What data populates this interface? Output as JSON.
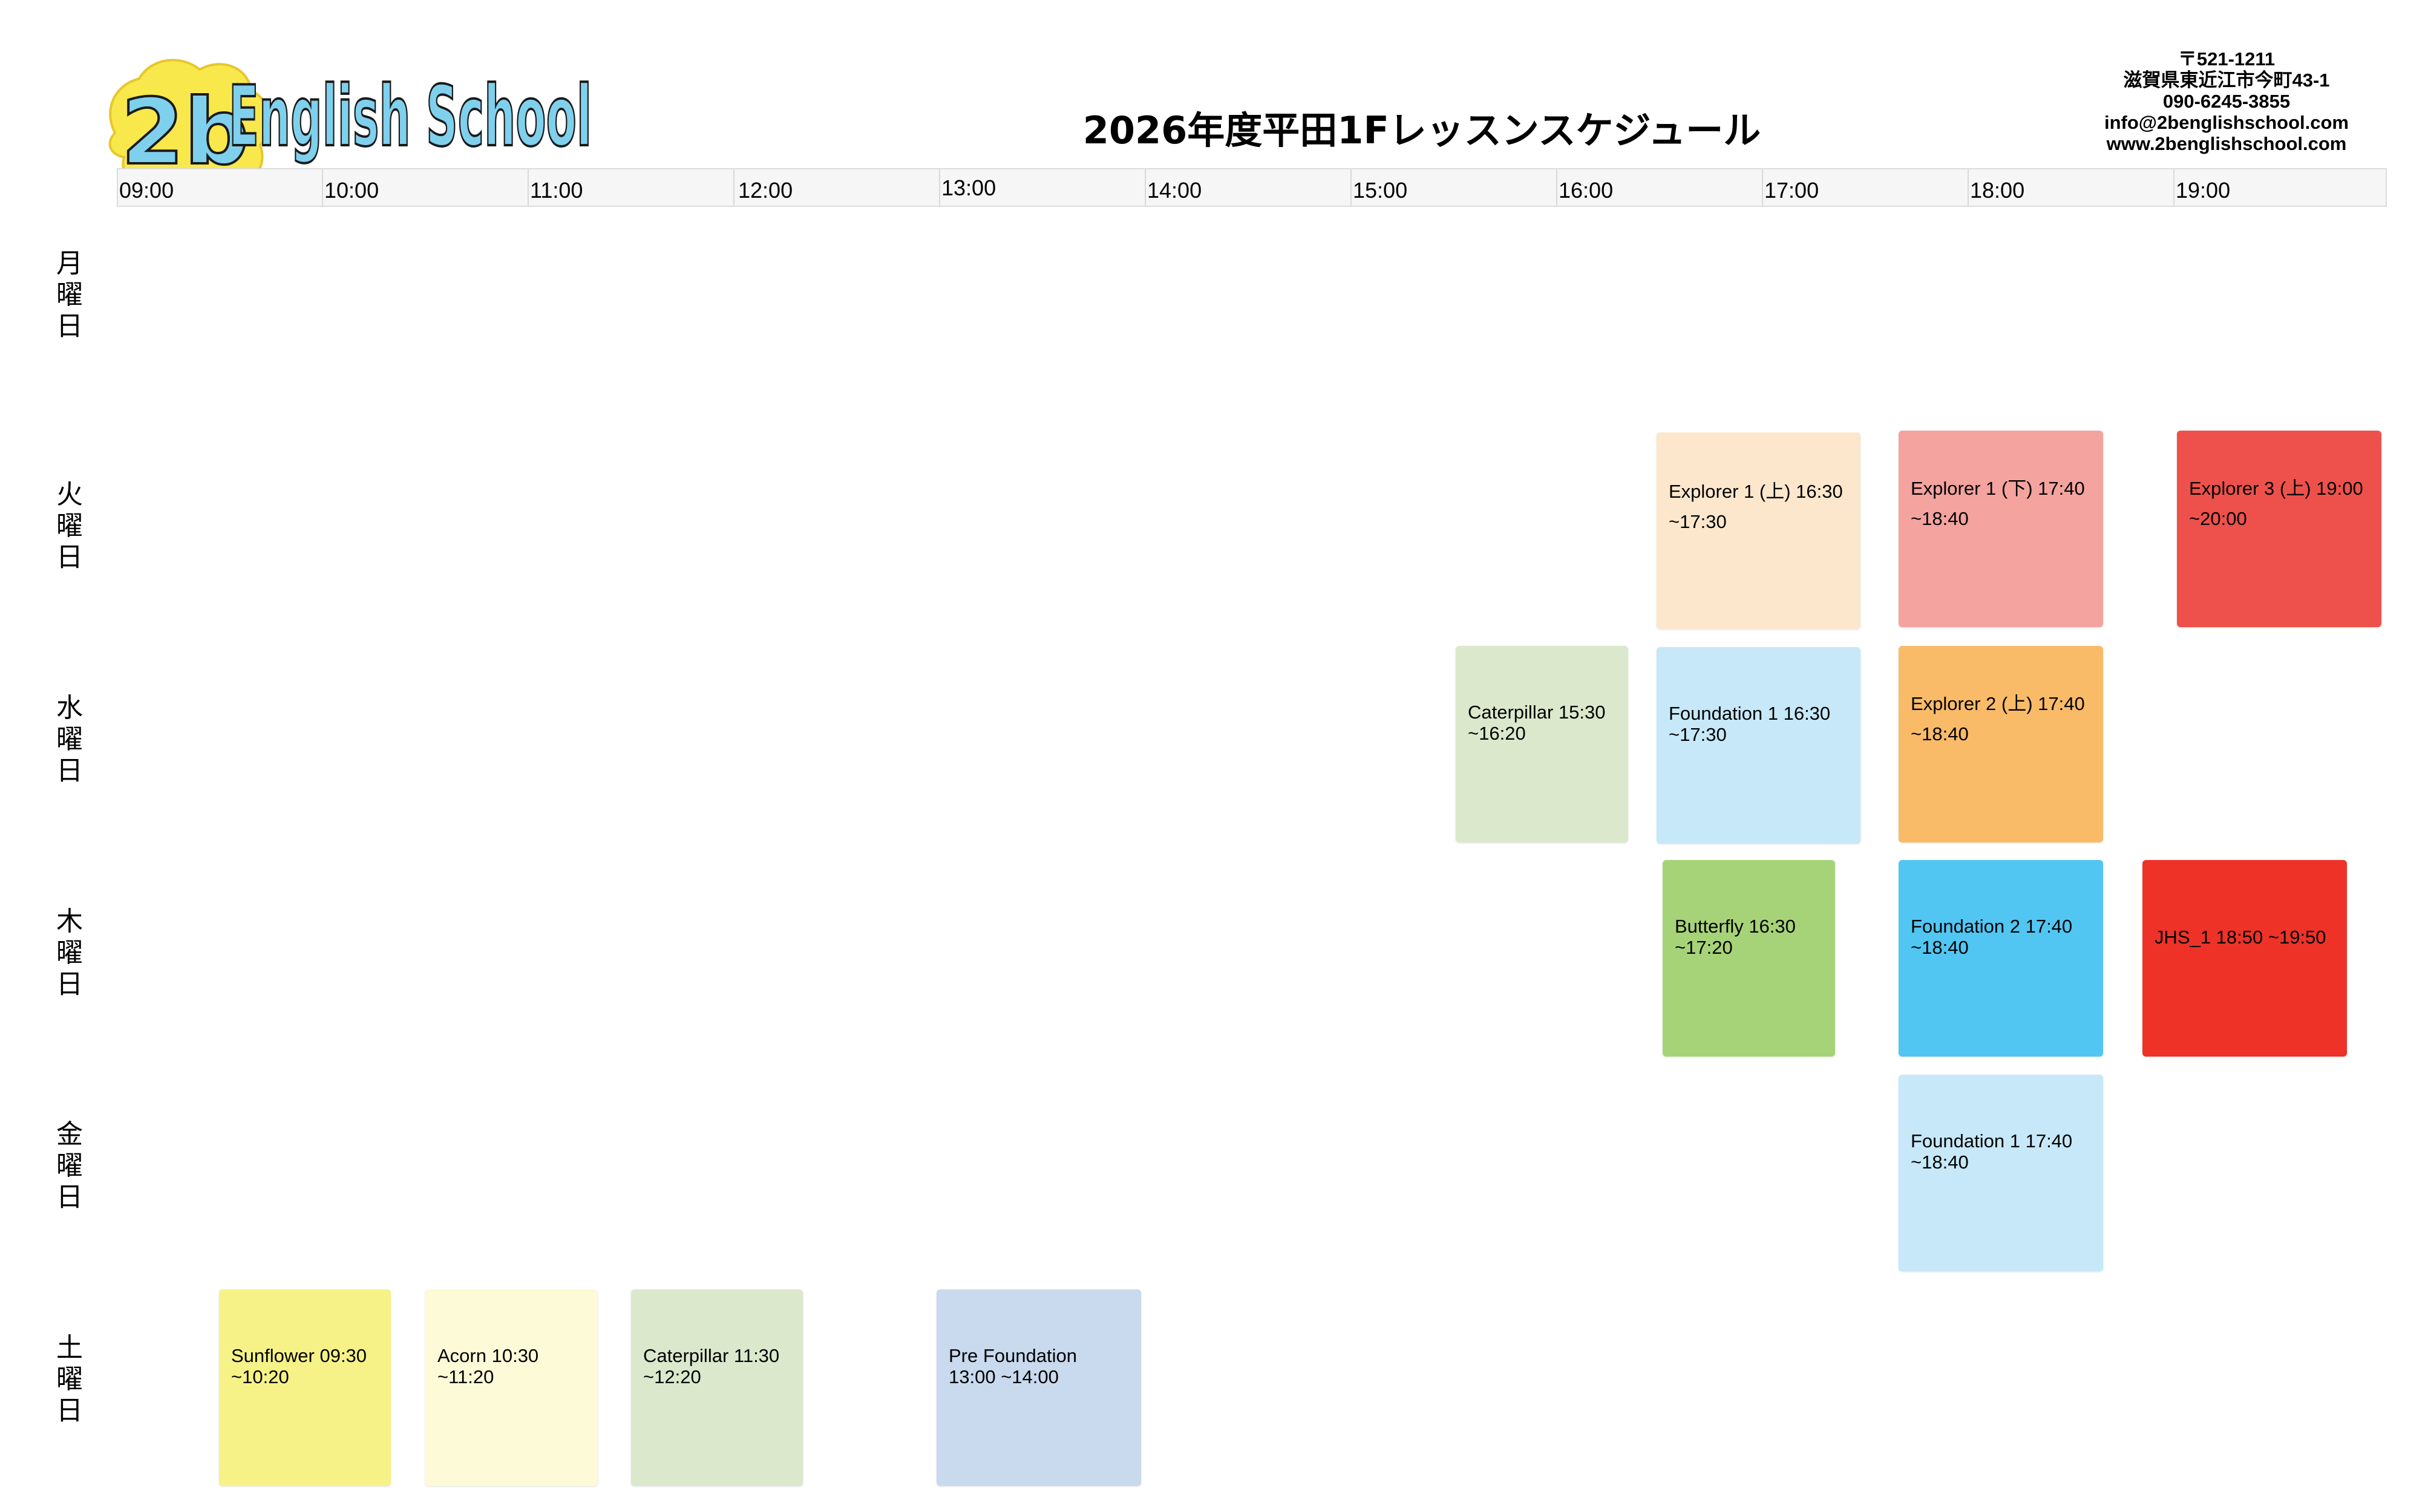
{
  "logo": {
    "mark_text": "2b",
    "word_text": "English School"
  },
  "title": "2026年度平田1Fレッスンスケジュール",
  "contact": {
    "postal": "〒521-1211",
    "address": "滋賀県東近江市今町43-1",
    "phone": "090-6245-3855",
    "email": "info@2benglishschool.com",
    "web": "www.2benglishschool.com"
  },
  "time_header": [
    "09:00",
    "10:00",
    "11:00",
    "12:00",
    "13:00",
    "14:00",
    "15:00",
    "16:00",
    "17:00",
    "18:00",
    "19:00"
  ],
  "days": [
    "月\n曜\n日",
    "火\n曜\n日",
    "水\n曜\n日",
    "木\n曜\n日",
    "金\n曜\n日",
    "土\n曜\n日"
  ],
  "lessons": [
    {
      "day": "火",
      "line1": "Explorer 1 (上) 16:30",
      "line2": "~17:30",
      "color": "#fde7cc"
    },
    {
      "day": "火",
      "line1": "Explorer 1 (下) 17:40",
      "line2": "~18:40",
      "color": "#f4a39f"
    },
    {
      "day": "火",
      "line1": "Explorer 3 (上) 19:00",
      "line2": "~20:00",
      "color": "#ee514b"
    },
    {
      "day": "水",
      "line1": "Caterpillar 15:30",
      "line2": "~16:20",
      "color": "#dbe8cc"
    },
    {
      "day": "水",
      "line1": "Foundation 1 16:30",
      "line2": "~17:30",
      "color": "#c6e8f8"
    },
    {
      "day": "水",
      "line1": "Explorer 2 (上) 17:40",
      "line2": "~18:40",
      "color": "#f9bb68"
    },
    {
      "day": "木",
      "line1": "Butterfly 16:30",
      "line2": "~17:20",
      "color": "#a7d378"
    },
    {
      "day": "木",
      "line1": "Foundation 2 17:40",
      "line2": "~18:40",
      "color": "#51c6f2"
    },
    {
      "day": "木",
      "line1": "JHS_1 18:50 ~19:50",
      "line2": "",
      "color": "#ee3228"
    },
    {
      "day": "金",
      "line1": "Foundation 1 17:40",
      "line2": "~18:40",
      "color": "#c6e8f8"
    },
    {
      "day": "土",
      "line1": "Sunflower 09:30",
      "line2": "~10:20",
      "color": "#f7f287"
    },
    {
      "day": "土",
      "line1": "Acorn 10:30",
      "line2": "~11:20",
      "color": "#fdfad8"
    },
    {
      "day": "土",
      "line1": "Caterpillar 11:30",
      "line2": "~12:20",
      "color": "#dbe8cc"
    },
    {
      "day": "土",
      "line1": "Pre Foundation",
      "line2": "13:00 ~14:00",
      "color": "#c9d9ee"
    }
  ]
}
